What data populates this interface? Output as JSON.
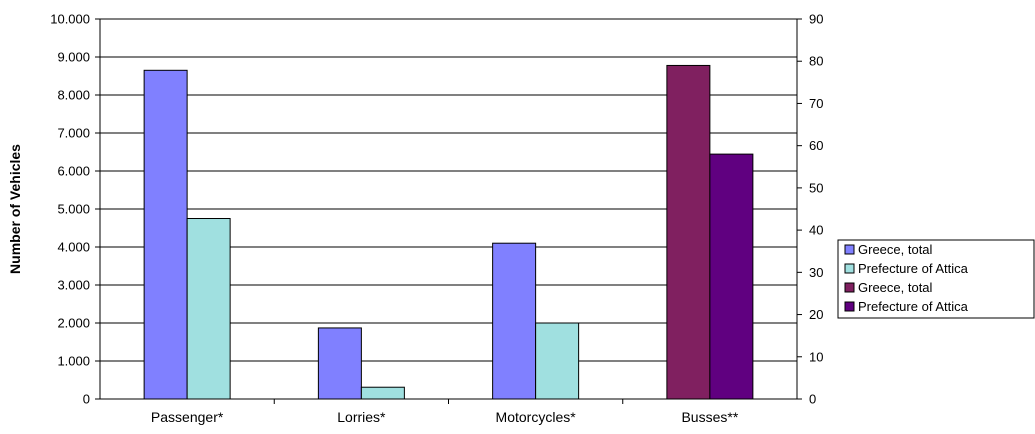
{
  "chart_data": {
    "type": "bar",
    "categories": [
      "Passenger*",
      "Lorries*",
      "Motorcycles*",
      "Busses**"
    ],
    "ylabel": "Number of Vehicles",
    "y_left": {
      "min": 0,
      "max": 10000,
      "step": 1000,
      "tick_labels": [
        "0",
        "1.000",
        "2.000",
        "3.000",
        "4.000",
        "5.000",
        "6.000",
        "7.000",
        "8.000",
        "9.000",
        "10.000"
      ]
    },
    "y_right": {
      "min": 0,
      "max": 90,
      "step": 10,
      "tick_labels": [
        "0",
        "10",
        "20",
        "30",
        "40",
        "50",
        "60",
        "70",
        "80",
        "90"
      ]
    },
    "grid": true,
    "legend_position": "right",
    "series": [
      {
        "name": "Greece, total",
        "axis": "left",
        "color": "#8080ff",
        "values": [
          8650,
          1870,
          4100,
          null
        ]
      },
      {
        "name": "Prefecture of Attica",
        "axis": "left",
        "color": "#a0e0e0",
        "values": [
          4750,
          310,
          2000,
          null
        ]
      },
      {
        "name": "Greece, total",
        "axis": "right",
        "color": "#802060",
        "values": [
          null,
          null,
          null,
          79
        ]
      },
      {
        "name": "Prefecture of Attica",
        "axis": "right",
        "color": "#600080",
        "values": [
          null,
          null,
          null,
          58
        ]
      }
    ]
  }
}
